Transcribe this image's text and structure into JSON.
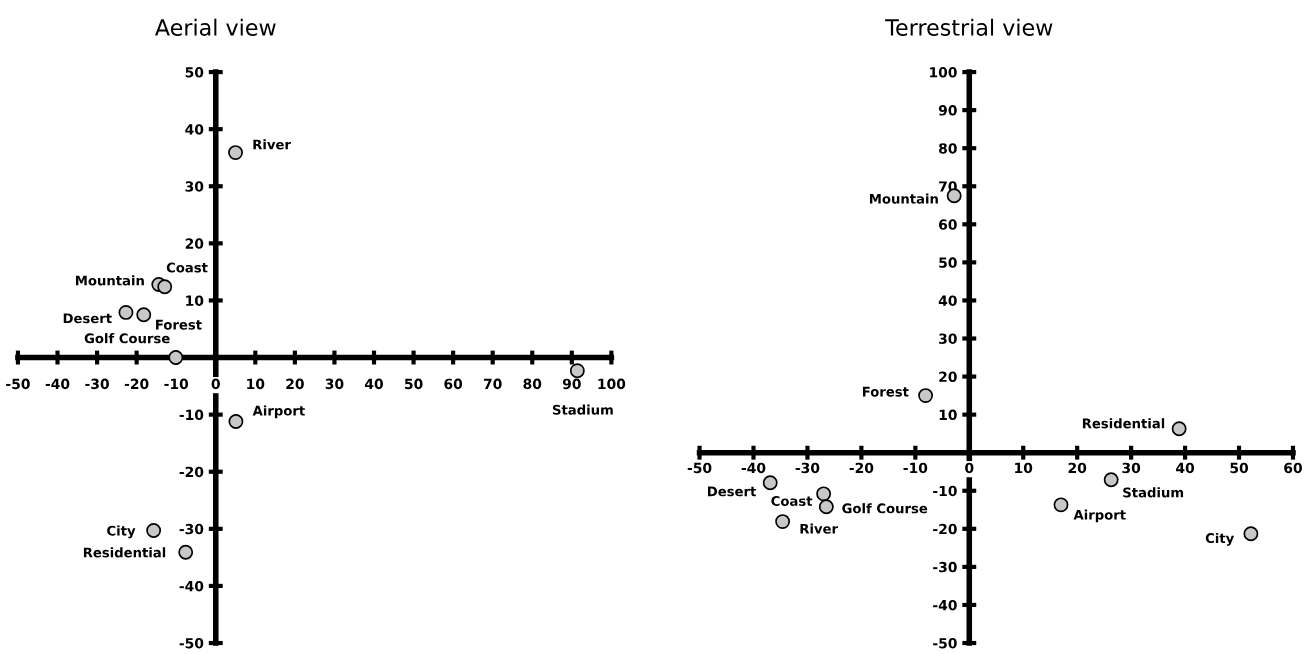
{
  "chart_data": [
    {
      "type": "scatter",
      "title": "Aerial view",
      "color": "#c8c8c8",
      "marker": "circle",
      "grid": false,
      "x": [
        5,
        -14.4,
        -12.9,
        -22.7,
        -18.2,
        -10.1,
        91.4,
        5.1,
        -15.7,
        -7.6
      ],
      "values": [
        35.9,
        12.8,
        12.4,
        7.9,
        7.5,
        0,
        -2.3,
        -11.2,
        -30.3,
        -34.1
      ],
      "annotations": [
        {
          "text": "River",
          "x": 5,
          "y": 35.9
        },
        {
          "text": "Mountain",
          "x": -14.4,
          "y": 12.8
        },
        {
          "text": "Coast",
          "x": -12.9,
          "y": 12.4
        },
        {
          "text": "Desert",
          "x": -22.7,
          "y": 7.9
        },
        {
          "text": "Forest",
          "x": -18.2,
          "y": 7.5
        },
        {
          "text": "Golf Course",
          "x": -10.1,
          "y": 0
        },
        {
          "text": "Stadium",
          "x": 91.4,
          "y": -2.3
        },
        {
          "text": "Airport",
          "x": 5.1,
          "y": -11.2
        },
        {
          "text": "City",
          "x": -15.7,
          "y": -30.3
        },
        {
          "text": "Residential",
          "x": -7.6,
          "y": -34.1
        }
      ],
      "xlim": [
        -50,
        100
      ],
      "ylim": [
        -50,
        50
      ],
      "xticks": [
        -50,
        -40,
        -30,
        -20,
        -10,
        0,
        10,
        20,
        30,
        40,
        50,
        60,
        70,
        80,
        90,
        100
      ],
      "yticks": [
        -50,
        -40,
        -30,
        -20,
        -10,
        {
          "value": 0,
          "label": null
        },
        10,
        20,
        30,
        40,
        50
      ]
    },
    {
      "type": "scatter",
      "title": "Terrestrial view",
      "color": "#c8c8c8",
      "marker": "circle",
      "grid": false,
      "x": [
        -2.8,
        -8.1,
        38.9,
        -36.9,
        -27.0,
        -26.5,
        -34.6,
        26.3,
        17.0,
        52.2
      ],
      "values": [
        67.5,
        15.0,
        6.3,
        -7.9,
        -10.8,
        -14.2,
        -18.1,
        -7.1,
        -13.7,
        -21.3
      ],
      "annotations": [
        {
          "text": "Mountain",
          "x": -2.8,
          "y": 67.5
        },
        {
          "text": "Forest",
          "x": -8.1,
          "y": 15.0
        },
        {
          "text": "Residential",
          "x": 38.9,
          "y": 6.3
        },
        {
          "text": "Desert",
          "x": -36.9,
          "y": -7.9
        },
        {
          "text": "Coast",
          "x": -27.0,
          "y": -10.8
        },
        {
          "text": "Golf Course",
          "x": -26.5,
          "y": -14.2
        },
        {
          "text": "River",
          "x": -34.6,
          "y": -18.1
        },
        {
          "text": "Stadium",
          "x": 26.3,
          "y": -7.1
        },
        {
          "text": "Airport",
          "x": 17.0,
          "y": -13.7
        },
        {
          "text": "City",
          "x": 52.2,
          "y": -21.3
        }
      ],
      "xlim": [
        -50,
        60
      ],
      "ylim": [
        -50,
        100
      ],
      "xticks": [
        -50,
        -40,
        -30,
        -20,
        -10,
        0,
        10,
        20,
        30,
        40,
        50,
        60
      ],
      "yticks": [
        -50,
        -40,
        -30,
        -20,
        -10,
        {
          "value": 0,
          "label": null
        },
        10,
        20,
        30,
        40,
        50,
        60,
        70,
        80,
        90,
        100
      ]
    }
  ]
}
